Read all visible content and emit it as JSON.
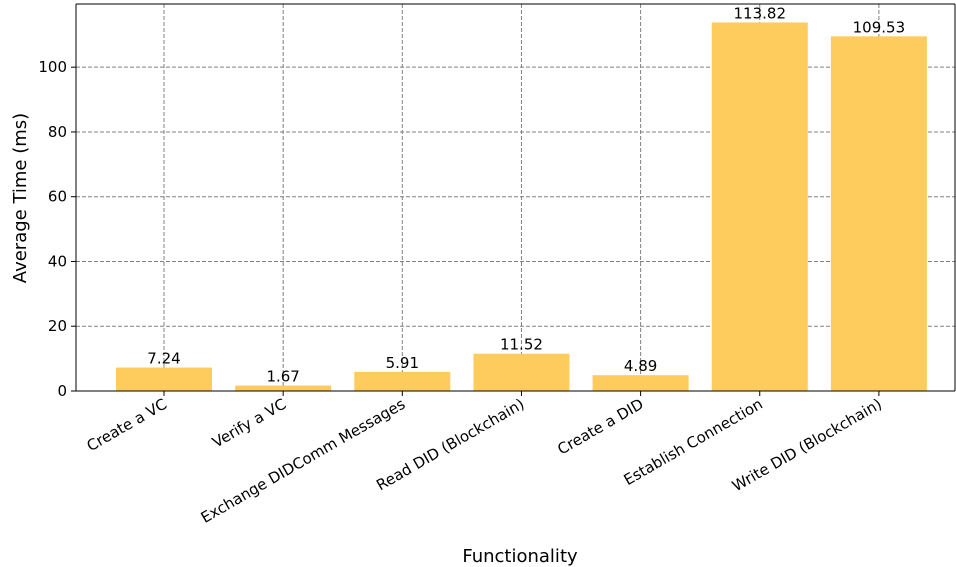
{
  "chart_data": {
    "type": "bar",
    "title": "",
    "xlabel": "Functionality",
    "ylabel": "Average Time (ms)",
    "categories": [
      "Create a VC",
      "Verify a VC",
      "Exchange DIDComm Messages",
      "Read DID (Blockchain)",
      "Create a DID",
      "Establish Connection",
      "Write DID (Blockchain)"
    ],
    "values": [
      7.24,
      1.67,
      5.91,
      11.52,
      4.89,
      113.82,
      109.53
    ],
    "value_labels": [
      "7.24",
      "1.67",
      "5.91",
      "11.52",
      "4.89",
      "113.82",
      "109.53"
    ],
    "ylim": [
      0,
      119.51
    ],
    "yticks": [
      0,
      20,
      40,
      60,
      80,
      100
    ],
    "grid": true,
    "bar_color": "#fecc5c",
    "grid_color": "#808080"
  }
}
